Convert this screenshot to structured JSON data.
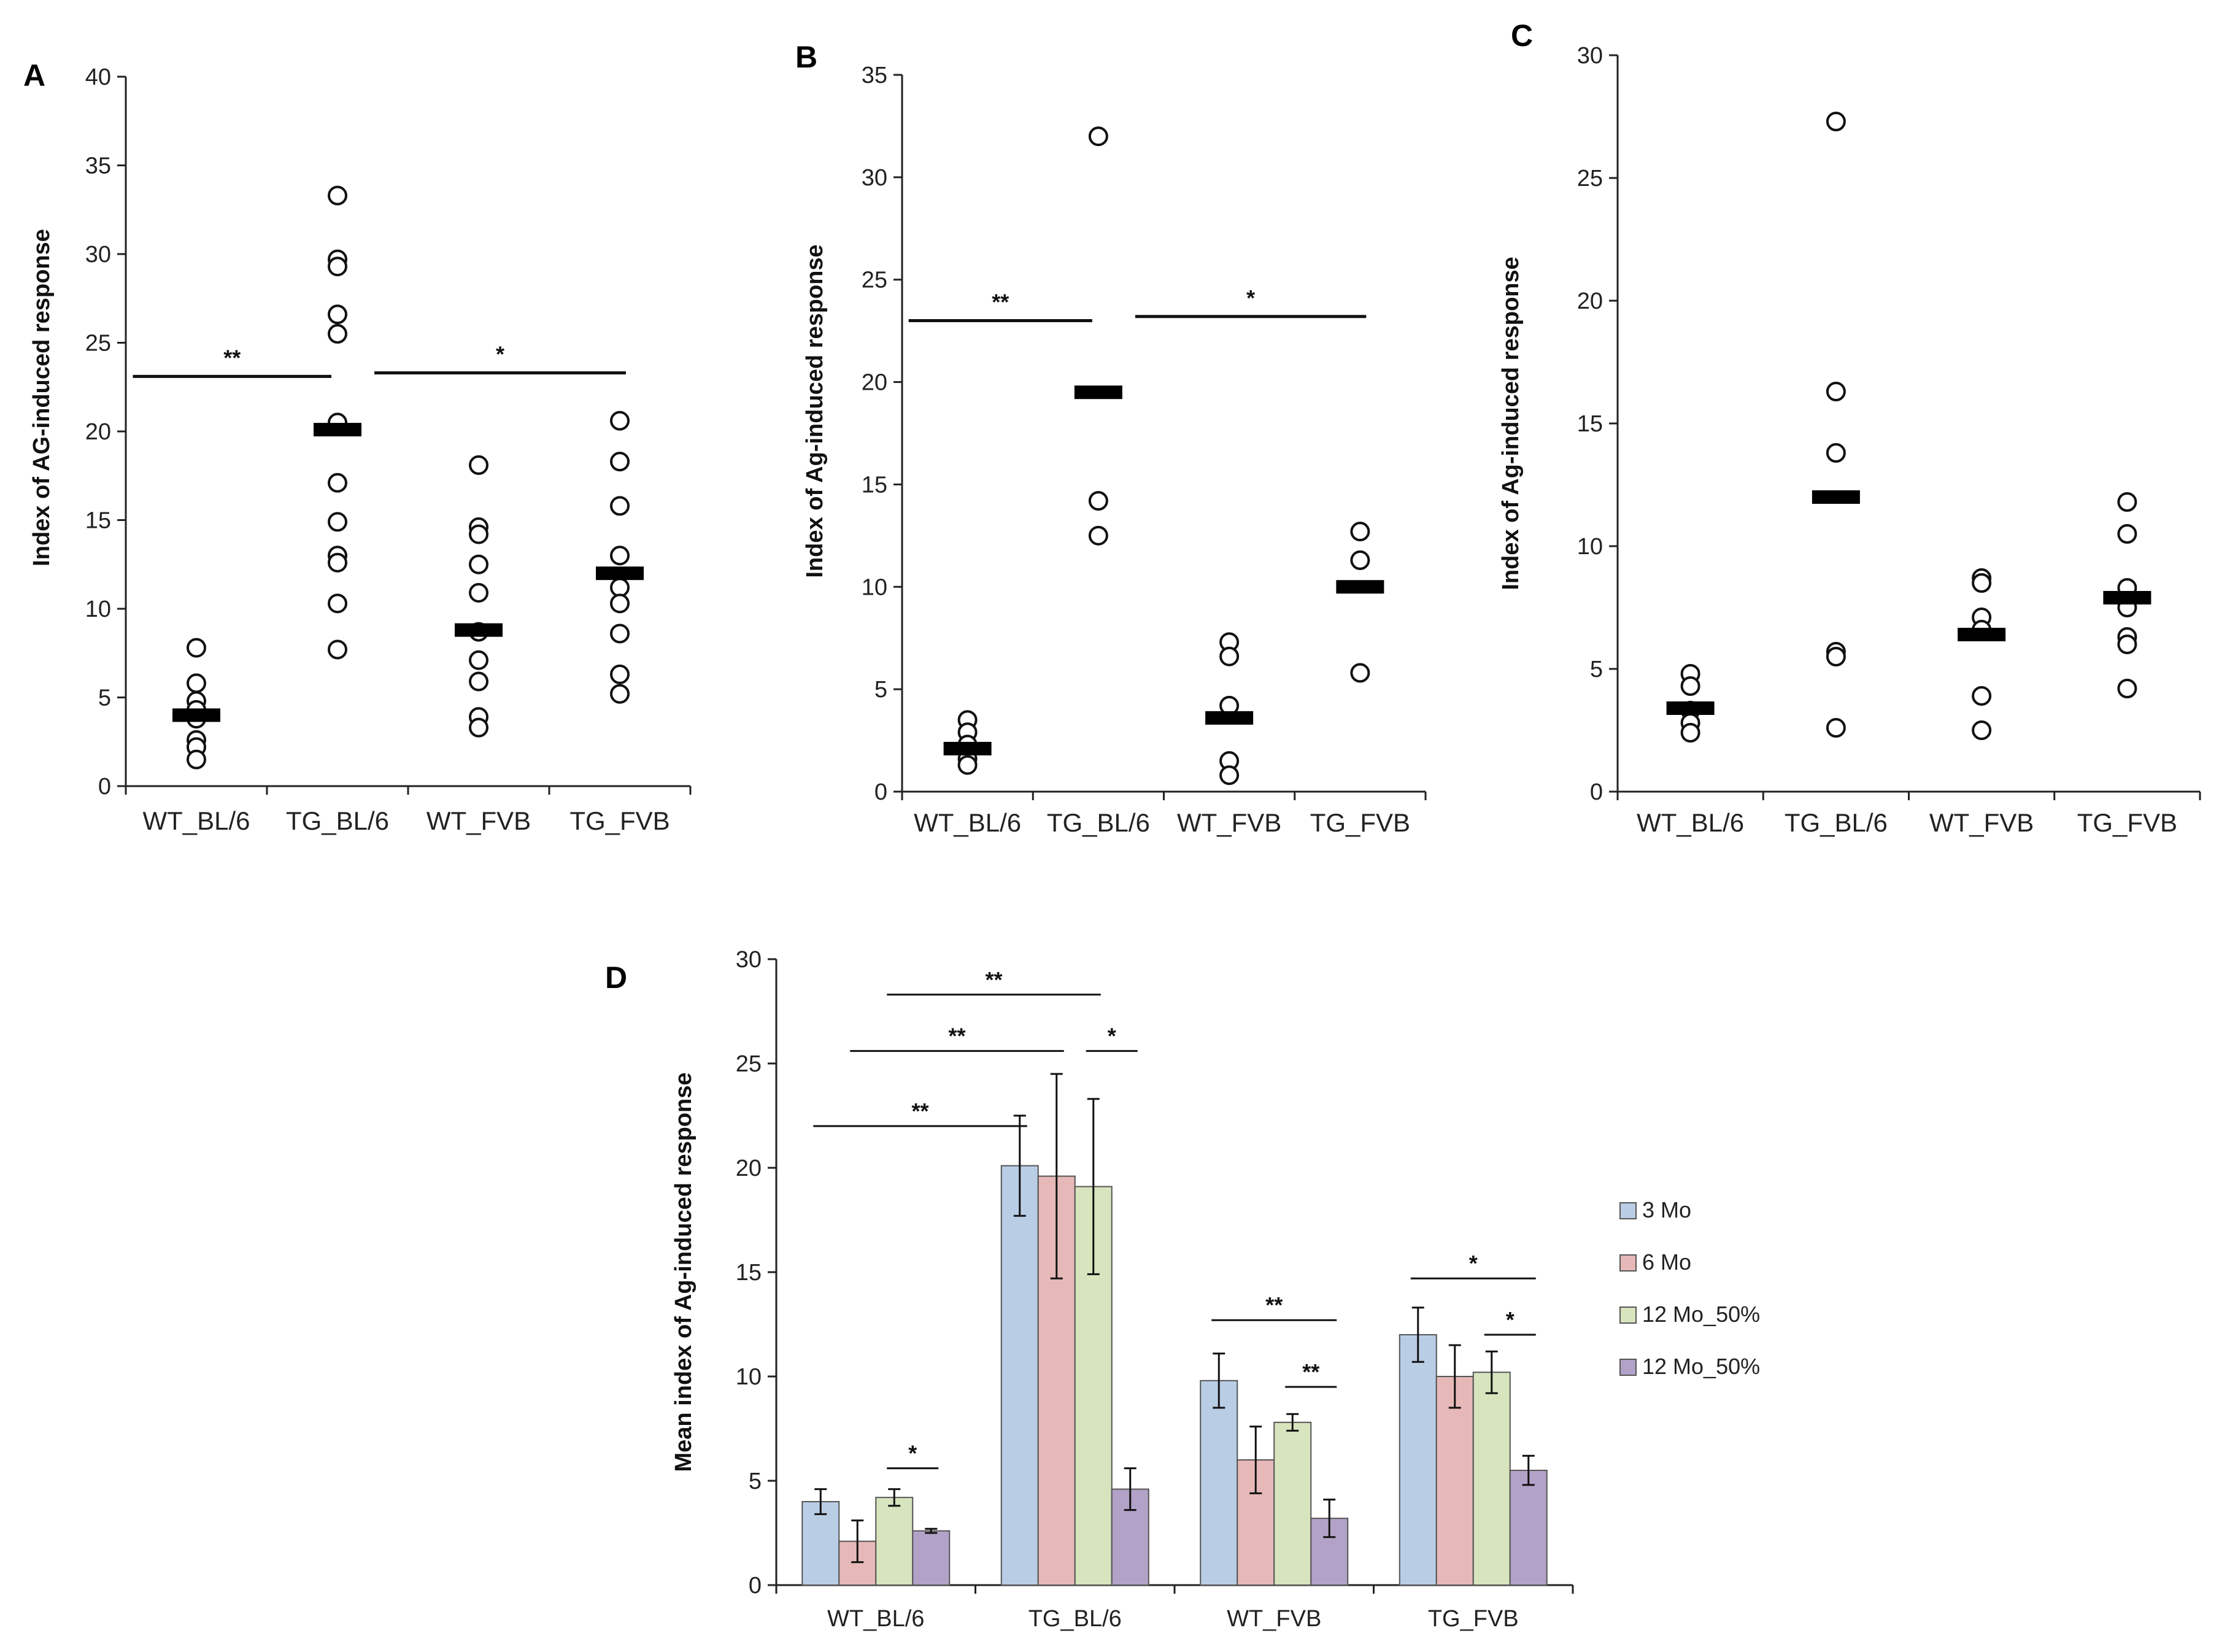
{
  "colors": {
    "s0": "#b9cde5",
    "s1": "#e6b9b8",
    "s2": "#d7e4bd",
    "s3": "#b3a2c7"
  },
  "chart_data": [
    {
      "panel": "A",
      "type": "scatter",
      "ylabel": "Index of AG-induced response",
      "ylim": [
        0,
        40
      ],
      "yticks": [
        0,
        5,
        10,
        15,
        20,
        25,
        30,
        35,
        40
      ],
      "categories": [
        "WT_BL/6",
        "TG_BL/6",
        "WT_FVB",
        "TG_FVB"
      ],
      "points": [
        [
          7.8,
          5.8,
          4.8,
          4.3,
          3.8,
          2.6,
          2.2,
          1.5
        ],
        [
          33.3,
          29.7,
          29.3,
          26.6,
          25.5,
          20.5,
          17.1,
          14.9,
          13.0,
          12.6,
          10.3,
          7.7
        ],
        [
          18.1,
          14.6,
          14.2,
          12.5,
          10.9,
          8.7,
          7.1,
          5.9,
          3.9,
          3.3
        ],
        [
          20.6,
          18.3,
          15.8,
          13.0,
          11.2,
          10.3,
          8.6,
          6.3,
          5.2
        ]
      ],
      "medians": [
        4.0,
        20.1,
        8.8,
        12.0
      ],
      "significance": [
        {
          "from": 0,
          "to": 1,
          "label": "**",
          "y": 23.1
        },
        {
          "from": 1,
          "to": 3,
          "label": "*",
          "y": 23.3
        }
      ]
    },
    {
      "panel": "B",
      "type": "scatter",
      "ylabel": "Index of Ag-induced response",
      "ylim": [
        0,
        35
      ],
      "yticks": [
        0,
        5,
        10,
        15,
        20,
        25,
        30,
        35
      ],
      "categories": [
        "WT_BL/6",
        "TG_BL/6",
        "WT_FVB",
        "TG_FVB"
      ],
      "points": [
        [
          3.5,
          2.9,
          2.3,
          1.6,
          1.3
        ],
        [
          32.0,
          14.2,
          12.5
        ],
        [
          7.3,
          6.6,
          4.2,
          1.5,
          0.8
        ],
        [
          12.7,
          11.3,
          5.8
        ]
      ],
      "medians": [
        2.1,
        19.5,
        3.6,
        10.0
      ],
      "significance": [
        {
          "from": 0,
          "to": 1,
          "label": "**",
          "y": 23.0
        },
        {
          "from": 1,
          "to": 3,
          "label": "*",
          "y": 23.2
        }
      ]
    },
    {
      "panel": "C",
      "type": "scatter",
      "ylabel": "Index of Ag-induced response",
      "ylim": [
        0,
        30
      ],
      "yticks": [
        0,
        5,
        10,
        15,
        20,
        25,
        30
      ],
      "categories": [
        "WT_BL/6",
        "TG_BL/6",
        "WT_FVB",
        "TG_FVB"
      ],
      "points": [
        [
          4.8,
          4.3,
          3.3,
          2.8,
          2.4
        ],
        [
          27.3,
          16.3,
          13.8,
          5.7,
          5.5,
          2.6
        ],
        [
          8.7,
          8.5,
          7.1,
          6.6,
          3.9,
          2.5
        ],
        [
          11.8,
          10.5,
          8.3,
          7.5,
          6.3,
          6.0,
          4.2
        ]
      ],
      "medians": [
        3.4,
        12.0,
        6.4,
        7.9
      ],
      "significance": []
    },
    {
      "panel": "D",
      "type": "bar",
      "ylabel": "Mean index of Ag-induced response",
      "ylim": [
        0,
        30
      ],
      "yticks": [
        0,
        5,
        10,
        15,
        20,
        25,
        30
      ],
      "categories": [
        "WT_BL/6",
        "TG_BL/6",
        "WT_FVB",
        "TG_FVB"
      ],
      "series": [
        {
          "name": "3 Mo",
          "values": [
            4.0,
            20.1,
            9.8,
            12.0
          ],
          "errors": [
            0.6,
            2.4,
            1.3,
            1.3
          ]
        },
        {
          "name": "6 Mo",
          "values": [
            2.1,
            19.6,
            6.0,
            10.0
          ],
          "errors": [
            1.0,
            4.9,
            1.6,
            1.5
          ]
        },
        {
          "name": "12 Mo_50%",
          "values": [
            4.2,
            19.1,
            7.8,
            10.2
          ],
          "errors": [
            0.4,
            4.2,
            0.4,
            1.0
          ]
        },
        {
          "name": "12 Mo_50%",
          "values": [
            2.6,
            4.6,
            3.2,
            5.5
          ],
          "errors": [
            0.1,
            1.0,
            0.9,
            0.7
          ]
        }
      ],
      "significance": [
        {
          "from": [
            0,
            0
          ],
          "to": [
            1,
            0
          ],
          "label": "**",
          "y": 22.0
        },
        {
          "from": [
            0,
            1
          ],
          "to": [
            1,
            1
          ],
          "label": "**",
          "y": 25.6
        },
        {
          "from": [
            0,
            2
          ],
          "to": [
            1,
            2
          ],
          "label": "**",
          "y": 28.3
        },
        {
          "from": [
            1,
            2
          ],
          "to": [
            1,
            3
          ],
          "label": "*",
          "y": 25.6
        },
        {
          "from": [
            0,
            2
          ],
          "to": [
            0,
            3
          ],
          "label": "*",
          "y": 5.6
        },
        {
          "from": [
            2,
            0
          ],
          "to": [
            2,
            3
          ],
          "label": "**",
          "y": 12.7
        },
        {
          "from": [
            2,
            2
          ],
          "to": [
            2,
            3
          ],
          "label": "**",
          "y": 9.5
        },
        {
          "from": [
            3,
            0
          ],
          "to": [
            3,
            3
          ],
          "label": "*",
          "y": 14.7
        },
        {
          "from": [
            3,
            2
          ],
          "to": [
            3,
            3
          ],
          "label": "*",
          "y": 12.0
        }
      ]
    }
  ]
}
